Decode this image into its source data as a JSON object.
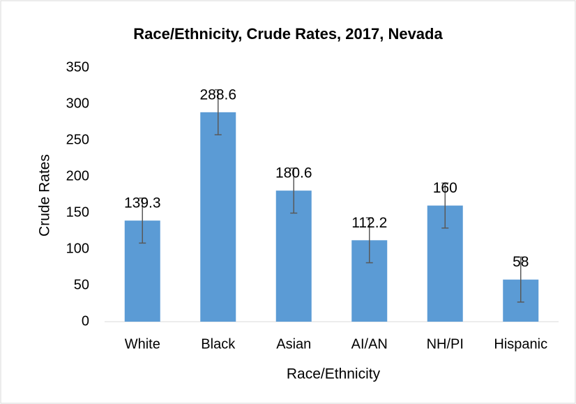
{
  "chart_data": {
    "type": "bar",
    "title": "Race/Ethnicity, Crude Rates, 2017, Nevada",
    "x_label": "Race/Ethnicity",
    "y_label": "Crude Rates",
    "categories": [
      "White",
      "Black",
      "Asian",
      "AI/AN",
      "NH/PI",
      "Hispanic"
    ],
    "values": [
      139.3,
      288.6,
      180.6,
      112.2,
      160,
      58
    ],
    "errors": [
      31,
      31,
      31,
      31,
      31,
      31
    ],
    "color": "#5b9bd5",
    "error_color": "#595959",
    "ylim": [
      0,
      350
    ],
    "yticks": [
      0,
      50,
      100,
      150,
      200,
      250,
      300,
      350
    ],
    "grid": false
  }
}
